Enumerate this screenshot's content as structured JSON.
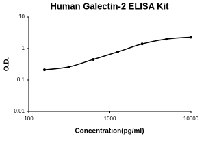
{
  "chart_data": {
    "type": "scatter",
    "title": "Human Galectin-2 ELISA Kit",
    "x_label": "Concentration(pg/ml)",
    "y_label": "O.D.",
    "x": [
      156.25,
      312.5,
      625,
      1250,
      2500,
      5000,
      10000
    ],
    "values": [
      0.21,
      0.26,
      0.45,
      0.78,
      1.4,
      2.0,
      2.3
    ],
    "color": "#000000",
    "fit_curve": true,
    "xlim": [
      100,
      10000
    ],
    "ylim": [
      0.01,
      10
    ],
    "xticks": [
      100,
      1000,
      10000
    ],
    "yticks": [
      0.01,
      0.1,
      1,
      10
    ],
    "xlog": true,
    "ylog": true
  }
}
